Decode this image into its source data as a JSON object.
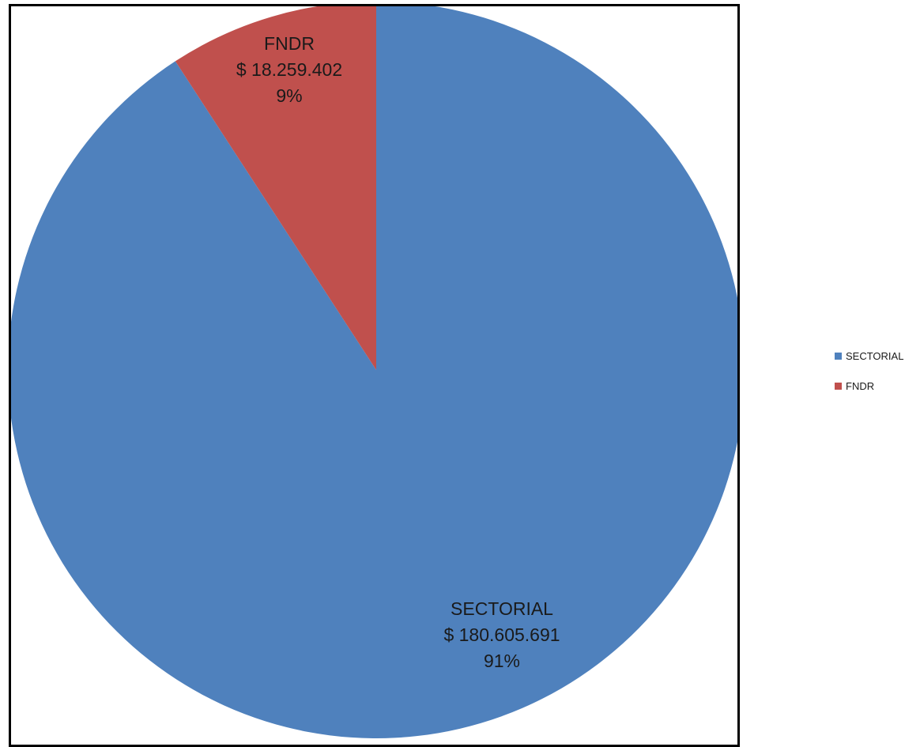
{
  "chart_data": {
    "type": "pie",
    "title": "",
    "slices": [
      {
        "name": "SECTORIAL",
        "value_label": "$ 180.605.691",
        "value": 180605691,
        "percent_label": "91%",
        "color": "#4F81BD"
      },
      {
        "name": "FNDR",
        "value_label": "$ 18.259.402",
        "value": 18259402,
        "percent_label": "9%",
        "color": "#C0504D"
      }
    ],
    "legend_placement": "right",
    "start_angle": "12 o'clock",
    "direction": "clockwise"
  }
}
